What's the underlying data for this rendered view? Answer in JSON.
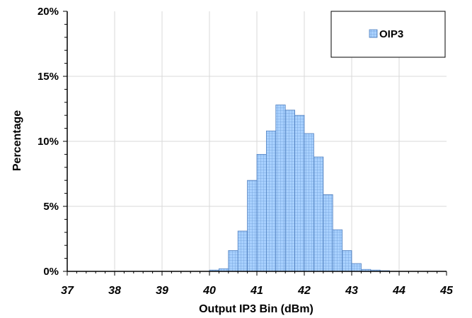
{
  "chart_data": {
    "type": "bar",
    "title": "",
    "xlabel": "Output IP3 Bin (dBm)",
    "ylabel": "Percentage",
    "xlim": [
      37,
      45
    ],
    "ylim": [
      0,
      20
    ],
    "x_ticks": [
      "37",
      "38",
      "39",
      "40",
      "41",
      "42",
      "43",
      "44",
      "45"
    ],
    "y_ticks": [
      "0%",
      "5%",
      "10%",
      "15%",
      "20%"
    ],
    "y_tick_values": [
      0,
      5,
      10,
      15,
      20
    ],
    "grid": true,
    "legend_position": "top-right",
    "bin_width": 0.2,
    "series": [
      {
        "name": "OIP3",
        "color": "#99ccff",
        "bins": [
          40.0,
          40.2,
          40.4,
          40.6,
          40.8,
          41.0,
          41.2,
          41.4,
          41.6,
          41.8,
          42.0,
          42.2,
          42.4,
          42.6,
          42.8,
          43.0,
          43.2,
          43.4,
          43.6
        ],
        "values": [
          0.1,
          0.2,
          1.6,
          3.1,
          7.0,
          9.0,
          10.8,
          12.8,
          12.4,
          12.0,
          10.6,
          8.8,
          5.9,
          3.2,
          1.6,
          0.6,
          0.15,
          0.1,
          0.05
        ]
      }
    ]
  }
}
